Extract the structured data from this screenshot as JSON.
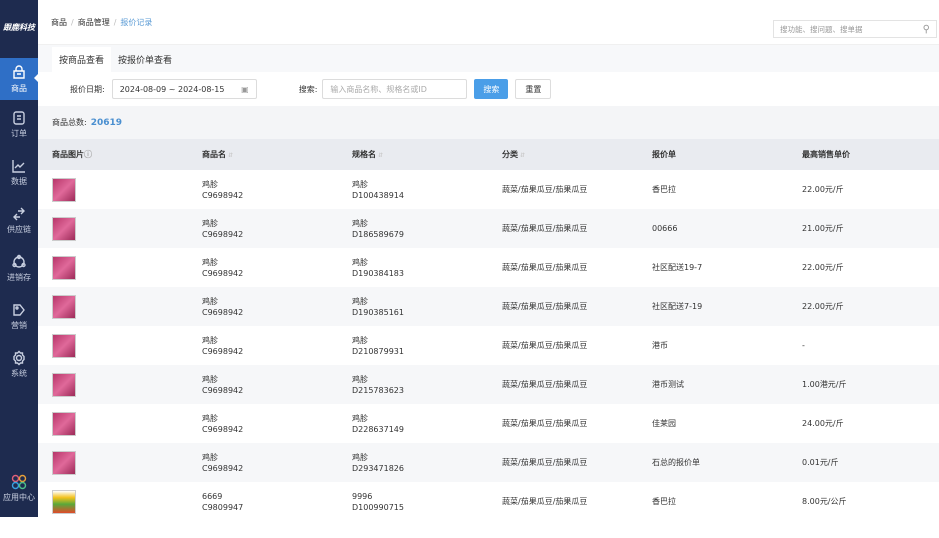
{
  "sidebar": {
    "logo": "跟鹿科技",
    "items": [
      {
        "label": "商品",
        "icon": "basket-icon",
        "active": true
      },
      {
        "label": "订单",
        "icon": "order-icon"
      },
      {
        "label": "数据",
        "icon": "chart-icon"
      },
      {
        "label": "供应链",
        "icon": "exchange-icon"
      },
      {
        "label": "进销存",
        "icon": "inventory-icon"
      },
      {
        "label": "营销",
        "icon": "tag-icon"
      },
      {
        "label": "系统",
        "icon": "gear-icon"
      }
    ],
    "apps": "应用中心"
  },
  "breadcrumb": [
    "商品",
    "商品管理",
    "报价记录"
  ],
  "global_search": {
    "placeholder": "搜功能、搜问题、搜单据"
  },
  "tabs": [
    "按商品查看",
    "按报价单查看"
  ],
  "filter": {
    "date_label": "报价日期:",
    "date_value": "2024-08-09 ~ 2024-08-15",
    "search_label": "搜索:",
    "search_placeholder": "输入商品名称、规格名或ID",
    "search_btn": "搜索",
    "reset_btn": "重置"
  },
  "summary": {
    "label": "商品总数:",
    "count": "20619"
  },
  "colors": {
    "sidebar": "#1e2b4f",
    "active": "#2f6fc6",
    "accent": "#4a8fd0"
  },
  "table": {
    "headers": [
      "商品图片",
      "商品名",
      "规格名",
      "分类",
      "报价单",
      "最高销售单价"
    ],
    "rows": [
      {
        "name": "鸡胗",
        "code": "C9698942",
        "spec": "鸡胗",
        "spec_id": "D100438914",
        "cat": "蔬菜/茄果瓜豆/茄果瓜豆",
        "quote": "香巴拉",
        "price": "22.00元/斤"
      },
      {
        "name": "鸡胗",
        "code": "C9698942",
        "spec": "鸡胗",
        "spec_id": "D186589679",
        "cat": "蔬菜/茄果瓜豆/茄果瓜豆",
        "quote": "00666",
        "price": "21.00元/斤"
      },
      {
        "name": "鸡胗",
        "code": "C9698942",
        "spec": "鸡胗",
        "spec_id": "D190384183",
        "cat": "蔬菜/茄果瓜豆/茄果瓜豆",
        "quote": "社区配送19-7",
        "price": "22.00元/斤"
      },
      {
        "name": "鸡胗",
        "code": "C9698942",
        "spec": "鸡胗",
        "spec_id": "D190385161",
        "cat": "蔬菜/茄果瓜豆/茄果瓜豆",
        "quote": "社区配送7-19",
        "price": "22.00元/斤"
      },
      {
        "name": "鸡胗",
        "code": "C9698942",
        "spec": "鸡胗",
        "spec_id": "D210879931",
        "cat": "蔬菜/茄果瓜豆/茄果瓜豆",
        "quote": "港币",
        "price": "-"
      },
      {
        "name": "鸡胗",
        "code": "C9698942",
        "spec": "鸡胗",
        "spec_id": "D215783623",
        "cat": "蔬菜/茄果瓜豆/茄果瓜豆",
        "quote": "港币测试",
        "price": "1.00港元/斤"
      },
      {
        "name": "鸡胗",
        "code": "C9698942",
        "spec": "鸡胗",
        "spec_id": "D228637149",
        "cat": "蔬菜/茄果瓜豆/茄果瓜豆",
        "quote": "佳莱园",
        "price": "24.00元/斤"
      },
      {
        "name": "鸡胗",
        "code": "C9698942",
        "spec": "鸡胗",
        "spec_id": "D293471826",
        "cat": "蔬菜/茄果瓜豆/茄果瓜豆",
        "quote": "石总的报价单",
        "price": "0.01元/斤"
      },
      {
        "name": "6669",
        "code": "C9809947",
        "spec": "9996",
        "spec_id": "D100990715",
        "cat": "蔬菜/茄果瓜豆/茄果瓜豆",
        "quote": "香巴拉",
        "price": "8.00元/公斤"
      }
    ]
  }
}
